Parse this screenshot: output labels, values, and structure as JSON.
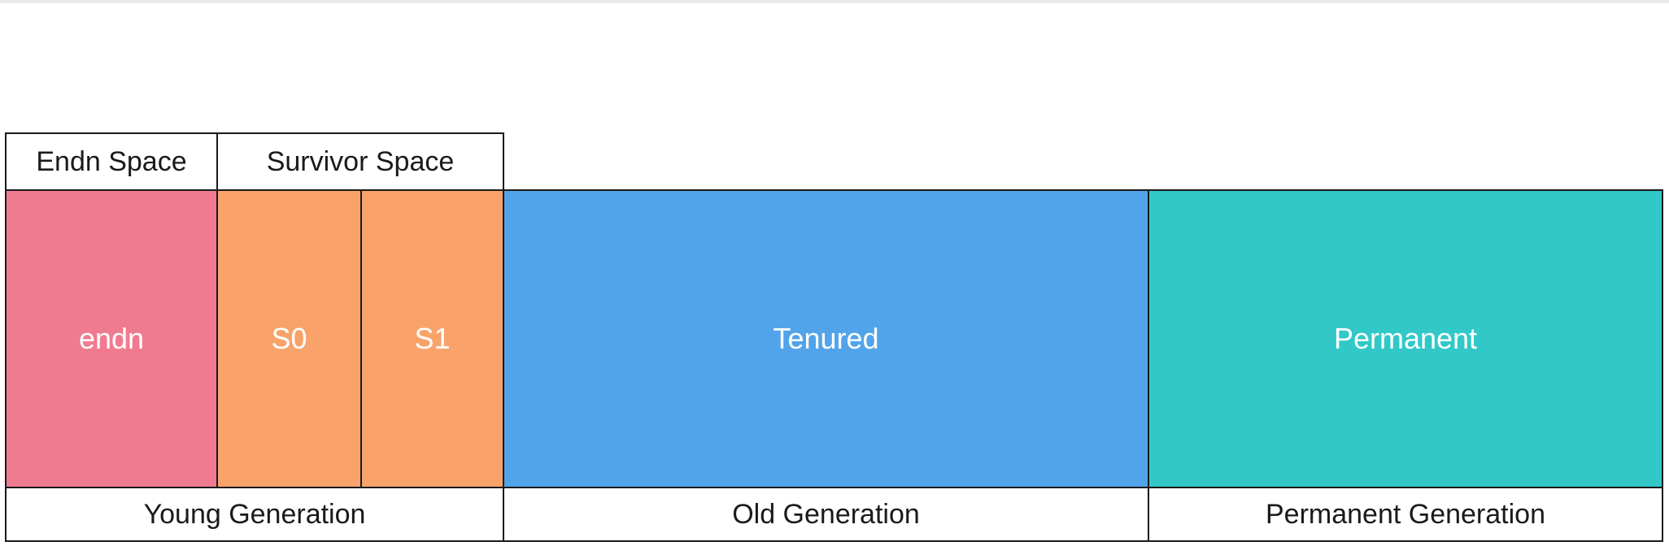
{
  "header": {
    "eden_space": "Endn Space",
    "survivor_space": "Survivor Space"
  },
  "regions": {
    "eden": "endn",
    "s0": "S0",
    "s1": "S1",
    "tenured": "Tenured",
    "permanent": "Permanent"
  },
  "footer": {
    "young": "Young Generation",
    "old": "Old Generation",
    "permanent": "Permanent Generation"
  },
  "colors": {
    "eden": "#f07b90",
    "survivor": "#f9a36a",
    "tenured": "#52a4ea",
    "permanent": "#32c8c8"
  }
}
